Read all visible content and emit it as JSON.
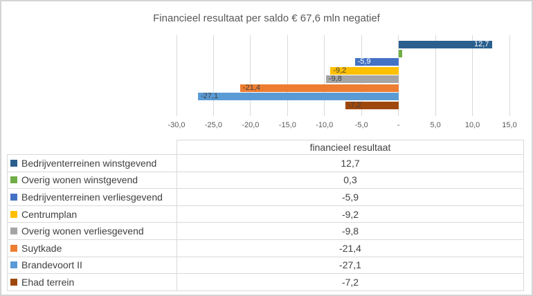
{
  "chart": {
    "title": "Financieel resultaat per saldo € 67,6 mln negatief",
    "title_color": "#595959",
    "gridline_color": "#d9d9d9",
    "axis_label_color": "#595959"
  },
  "chart_data": {
    "type": "bar",
    "orientation": "horizontal",
    "title": "Financieel resultaat per saldo € 67,6 mln negatief",
    "series_name": "financieel resultaat",
    "categories": [
      "Bedrijventerreinen winstgevend",
      "Overig wonen winstgevend",
      "Bedrijventerreinen verliesgevend",
      "Centrumplan",
      "Overig wonen verliesgevend",
      "Suytkade",
      "Brandevoort II",
      "Ehad terrein"
    ],
    "values": [
      12.7,
      0.3,
      -5.9,
      -9.2,
      -9.8,
      -21.4,
      -27.1,
      -7.2
    ],
    "value_labels": [
      "12,7",
      "0,3",
      "-5,9",
      "-9,2",
      "-9,8",
      "-21,4",
      "-27,1",
      "-7,2"
    ],
    "bar_colors": [
      "#2a5f8e",
      "#70ad47",
      "#4472c4",
      "#ffc000",
      "#a5a5a5",
      "#ed7d31",
      "#5b9bd5",
      "#9e480e"
    ],
    "bar_label_colors": [
      "#ffffff",
      "#ffffff",
      "#ffffff",
      "#404040",
      "#404040",
      "#404040",
      "#404040",
      "#404040"
    ],
    "xlim": [
      -30,
      15
    ],
    "x_ticks": [
      {
        "value": -30,
        "label": "-30,0"
      },
      {
        "value": -25,
        "label": "-25,0"
      },
      {
        "value": -20,
        "label": "-20,0"
      },
      {
        "value": -15,
        "label": "-15,0"
      },
      {
        "value": -10,
        "label": "-10,0"
      },
      {
        "value": -5,
        "label": "-5,0"
      },
      {
        "value": 0,
        "label": "-"
      },
      {
        "value": 5,
        "label": "5,0"
      },
      {
        "value": 10,
        "label": "10,0"
      },
      {
        "value": 15,
        "label": "15,0"
      }
    ],
    "grid": true,
    "legend_position": "none",
    "data_label_position": "inside-end"
  },
  "table": {
    "header": {
      "label_col": "",
      "value_col": "financieel resultaat"
    },
    "rows": [
      {
        "label": "Bedrijventerreinen winstgevend",
        "value": "12,7",
        "color": "#2a5f8e"
      },
      {
        "label": "Overig wonen winstgevend",
        "value": "0,3",
        "color": "#70ad47"
      },
      {
        "label": "Bedrijventerreinen verliesgevend",
        "value": "-5,9",
        "color": "#4472c4"
      },
      {
        "label": "Centrumplan",
        "value": "-9,2",
        "color": "#ffc000"
      },
      {
        "label": "Overig wonen verliesgevend",
        "value": "-9,8",
        "color": "#a5a5a5"
      },
      {
        "label": "Suytkade",
        "value": "-21,4",
        "color": "#ed7d31"
      },
      {
        "label": "Brandevoort II",
        "value": "-27,1",
        "color": "#5b9bd5"
      },
      {
        "label": "Ehad terrein",
        "value": "-7,2",
        "color": "#9e480e"
      }
    ]
  }
}
